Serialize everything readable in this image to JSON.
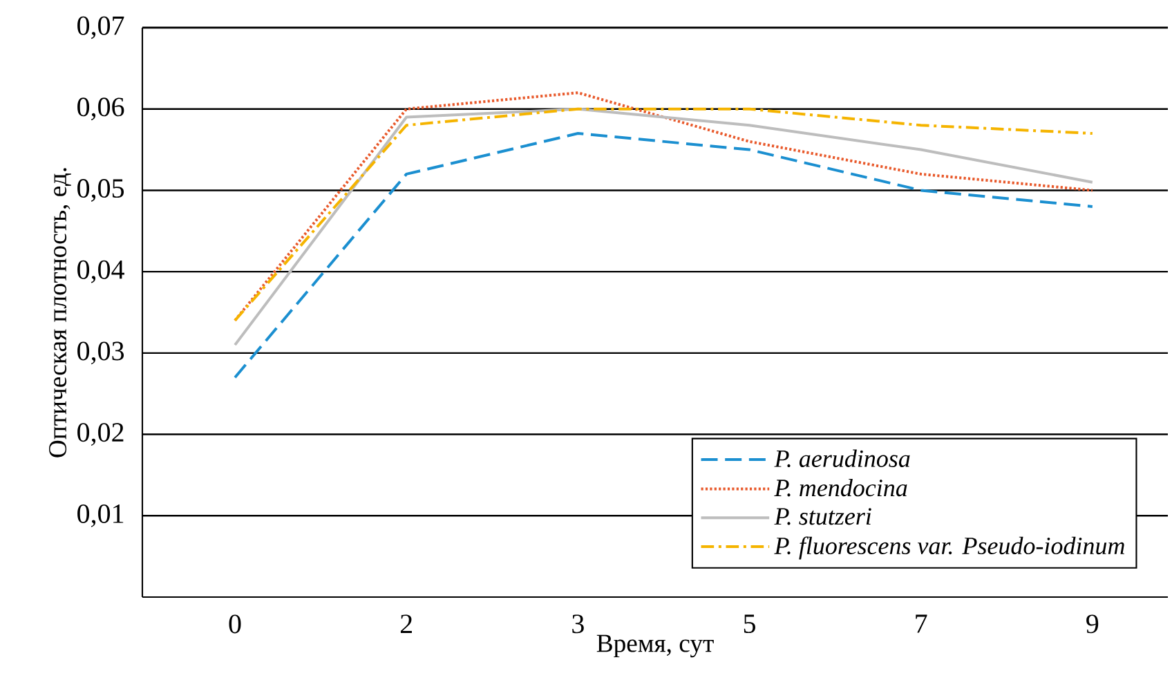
{
  "chart_data": {
    "type": "line",
    "xlabel": "Время, сут",
    "ylabel": "Оптическая плотность, ед.",
    "categories": [
      "0",
      "2",
      "3",
      "5",
      "7",
      "9"
    ],
    "ylim": [
      0,
      0.07
    ],
    "yticks": [
      {
        "value": 0.01,
        "label": "0,01"
      },
      {
        "value": 0.02,
        "label": "0,02"
      },
      {
        "value": 0.03,
        "label": "0,03"
      },
      {
        "value": 0.04,
        "label": "0,04"
      },
      {
        "value": 0.05,
        "label": "0,05"
      },
      {
        "value": 0.06,
        "label": "0,06"
      },
      {
        "value": 0.07,
        "label": "0,07"
      }
    ],
    "grid": "y",
    "legend": "bottom right",
    "marker": "none",
    "series": [
      {
        "name": "P. aerudinosa",
        "color": "#1b8fd0",
        "line_style": "dashed",
        "values": [
          0.027,
          0.052,
          0.057,
          0.055,
          0.05,
          0.048
        ]
      },
      {
        "name": "P. mendocina",
        "color": "#e8592b",
        "line_style": "dotted",
        "values": [
          0.034,
          0.06,
          0.062,
          0.056,
          0.052,
          0.05
        ]
      },
      {
        "name": "P. stutzeri",
        "color": "#bdbdbd",
        "line_style": "solid",
        "values": [
          0.031,
          0.059,
          0.06,
          0.058,
          0.055,
          0.051
        ]
      },
      {
        "name": "P. fluorescens var. Pseudo-iodinum",
        "color": "#f5b400",
        "line_style": "dashdot",
        "values": [
          0.034,
          0.058,
          0.06,
          0.06,
          0.058,
          0.057
        ]
      }
    ]
  }
}
